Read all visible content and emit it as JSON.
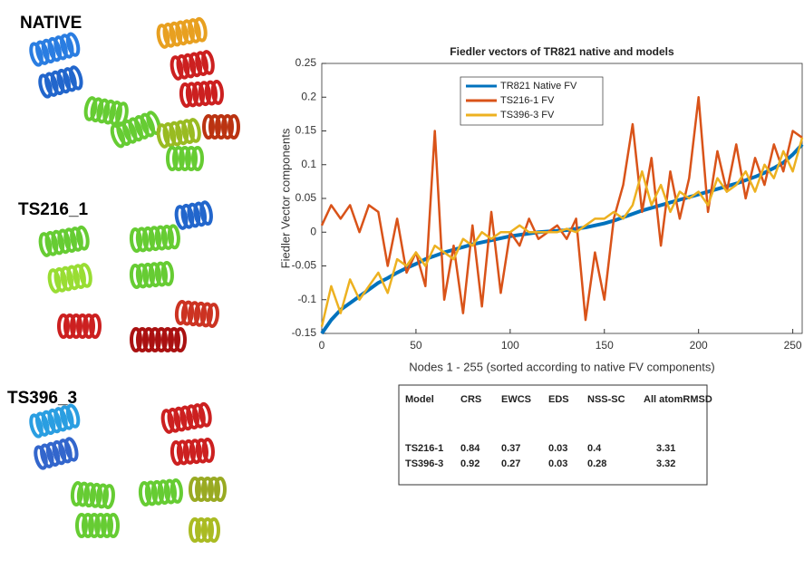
{
  "panels": {
    "native": "NATIVE",
    "model1": "TS216_1",
    "model2": "TS396_3"
  },
  "chart_data": {
    "type": "line",
    "title": "Fiedler vectors of TR821 native and models",
    "x_label": "Nodes 1 - 255 (sorted according to native FV components)",
    "y_label": "Fiedler Vector components",
    "x": [
      0,
      5,
      10,
      15,
      20,
      25,
      30,
      35,
      40,
      45,
      50,
      55,
      60,
      65,
      70,
      75,
      80,
      85,
      90,
      95,
      100,
      105,
      110,
      115,
      120,
      125,
      130,
      135,
      140,
      145,
      150,
      155,
      160,
      165,
      170,
      175,
      180,
      185,
      190,
      195,
      200,
      205,
      210,
      215,
      220,
      225,
      230,
      235,
      240,
      245,
      250,
      255
    ],
    "series": [
      {
        "name": "TR821 Native FV",
        "color": "#0072bd",
        "values": [
          -0.15,
          -0.13,
          -0.115,
          -0.105,
          -0.095,
          -0.085,
          -0.075,
          -0.068,
          -0.06,
          -0.053,
          -0.047,
          -0.04,
          -0.035,
          -0.03,
          -0.026,
          -0.022,
          -0.018,
          -0.015,
          -0.012,
          -0.009,
          -0.006,
          -0.004,
          -0.002,
          0,
          0.001,
          0.002,
          0.003,
          0.005,
          0.007,
          0.01,
          0.013,
          0.017,
          0.022,
          0.027,
          0.032,
          0.036,
          0.04,
          0.044,
          0.048,
          0.052,
          0.056,
          0.06,
          0.064,
          0.068,
          0.072,
          0.077,
          0.082,
          0.088,
          0.095,
          0.103,
          0.115,
          0.13
        ]
      },
      {
        "name": "TS216-1 FV",
        "color": "#d95319",
        "values": [
          0.01,
          0.04,
          0.02,
          0.04,
          0.0,
          0.04,
          0.03,
          -0.05,
          0.02,
          -0.06,
          -0.03,
          -0.08,
          0.15,
          -0.1,
          -0.02,
          -0.12,
          0.01,
          -0.11,
          0.03,
          -0.09,
          0.0,
          -0.02,
          0.02,
          -0.01,
          0.0,
          0.01,
          -0.01,
          0.02,
          -0.13,
          -0.03,
          -0.1,
          0.02,
          0.07,
          0.16,
          0.03,
          0.11,
          -0.02,
          0.09,
          0.02,
          0.08,
          0.2,
          0.03,
          0.12,
          0.06,
          0.13,
          0.05,
          0.11,
          0.07,
          0.13,
          0.09,
          0.15,
          0.14
        ]
      },
      {
        "name": "TS396-3 FV",
        "color": "#edb120",
        "values": [
          -0.14,
          -0.08,
          -0.12,
          -0.07,
          -0.1,
          -0.08,
          -0.06,
          -0.09,
          -0.04,
          -0.05,
          -0.03,
          -0.05,
          -0.02,
          -0.03,
          -0.04,
          -0.01,
          -0.02,
          0.0,
          -0.01,
          0.0,
          0.0,
          0.01,
          0.0,
          0.0,
          0.0,
          0.0,
          0.005,
          0.0,
          0.01,
          0.02,
          0.02,
          0.03,
          0.02,
          0.04,
          0.09,
          0.04,
          0.07,
          0.03,
          0.06,
          0.05,
          0.06,
          0.04,
          0.08,
          0.06,
          0.07,
          0.09,
          0.06,
          0.1,
          0.08,
          0.12,
          0.09,
          0.14
        ]
      }
    ],
    "xlim": [
      0,
      255
    ],
    "xticks": [
      0,
      50,
      100,
      150,
      200,
      250
    ],
    "ylim": [
      -0.15,
      0.25
    ],
    "yticks": [
      -0.15,
      -0.1,
      -0.05,
      0,
      0.05,
      0.1,
      0.15,
      0.2,
      0.25
    ],
    "legend": "upper-center"
  },
  "table": {
    "header": [
      "Model",
      "CRS",
      "EWCS",
      "EDS",
      "NSS-SC",
      "All atomRMSD"
    ],
    "rows": [
      [
        "TS216-1",
        "0.84",
        "0.37",
        "0.03",
        "0.4",
        "3.31"
      ],
      [
        "TS396-3",
        "0.92",
        "0.27",
        "0.03",
        "0.28",
        "3.32"
      ]
    ]
  }
}
